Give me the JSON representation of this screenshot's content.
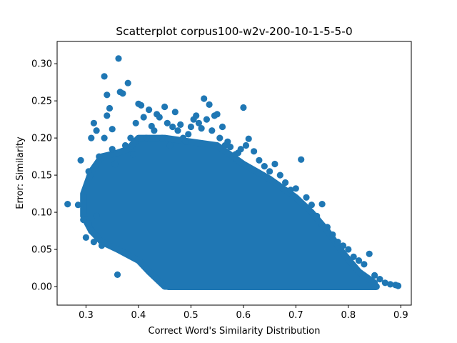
{
  "chart_data": {
    "type": "scatter",
    "title": "Scatterplot corpus100-w2v-200-10-1-5-5-0",
    "xlabel": "Correct Word's Similarity Distribution",
    "ylabel": "Error: Similarity",
    "xlim": [
      0.245,
      0.92
    ],
    "ylim": [
      -0.025,
      0.33
    ],
    "xticks": [
      0.3,
      0.4,
      0.5,
      0.6,
      0.7,
      0.8,
      0.9
    ],
    "xtick_labels": [
      "0.3",
      "0.4",
      "0.5",
      "0.6",
      "0.7",
      "0.8",
      "0.9"
    ],
    "yticks": [
      0.0,
      0.05,
      0.1,
      0.15,
      0.2,
      0.25,
      0.3
    ],
    "ytick_labels": [
      "0.00",
      "0.05",
      "0.10",
      "0.15",
      "0.20",
      "0.25",
      "0.30"
    ],
    "grid": false,
    "legend": "none",
    "marker_color": "#1f77b4",
    "series": [
      {
        "x": [
          0.265,
          0.285,
          0.29,
          0.295,
          0.3,
          0.3,
          0.305,
          0.305,
          0.31,
          0.31,
          0.315,
          0.315,
          0.32,
          0.32,
          0.325,
          0.33,
          0.335,
          0.335,
          0.34,
          0.34,
          0.345,
          0.35,
          0.35,
          0.355,
          0.36,
          0.362,
          0.365,
          0.37,
          0.375,
          0.38,
          0.385,
          0.39,
          0.395,
          0.4,
          0.405,
          0.41,
          0.415,
          0.42,
          0.425,
          0.43,
          0.435,
          0.44,
          0.445,
          0.45,
          0.455,
          0.46,
          0.465,
          0.47,
          0.475,
          0.48,
          0.485,
          0.49,
          0.495,
          0.5,
          0.505,
          0.51,
          0.515,
          0.52,
          0.525,
          0.53,
          0.535,
          0.54,
          0.545,
          0.55,
          0.555,
          0.56,
          0.565,
          0.57,
          0.575,
          0.58,
          0.585,
          0.59,
          0.595,
          0.6,
          0.605,
          0.61,
          0.62,
          0.63,
          0.64,
          0.65,
          0.66,
          0.67,
          0.68,
          0.69,
          0.7,
          0.71,
          0.72,
          0.73,
          0.74,
          0.75,
          0.76,
          0.77,
          0.78,
          0.79,
          0.8,
          0.81,
          0.82,
          0.83,
          0.84,
          0.85,
          0.86,
          0.87,
          0.88,
          0.89,
          0.895
        ],
        "y": [
          0.111,
          0.11,
          0.17,
          0.09,
          0.128,
          0.066,
          0.155,
          0.085,
          0.2,
          0.075,
          0.22,
          0.06,
          0.21,
          0.095,
          0.175,
          0.055,
          0.283,
          0.2,
          0.258,
          0.23,
          0.24,
          0.212,
          0.185,
          0.165,
          0.016,
          0.307,
          0.262,
          0.26,
          0.19,
          0.274,
          0.2,
          0.178,
          0.22,
          0.246,
          0.244,
          0.228,
          0.2,
          0.238,
          0.216,
          0.21,
          0.232,
          0.228,
          0.2,
          0.242,
          0.22,
          0.19,
          0.215,
          0.235,
          0.21,
          0.218,
          0.2,
          0.195,
          0.205,
          0.215,
          0.225,
          0.23,
          0.22,
          0.213,
          0.253,
          0.225,
          0.245,
          0.21,
          0.23,
          0.232,
          0.2,
          0.215,
          0.19,
          0.195,
          0.188,
          0.175,
          0.178,
          0.18,
          0.185,
          0.241,
          0.19,
          0.199,
          0.182,
          0.17,
          0.162,
          0.155,
          0.165,
          0.15,
          0.14,
          0.13,
          0.132,
          0.171,
          0.12,
          0.11,
          0.095,
          0.111,
          0.08,
          0.07,
          0.06,
          0.055,
          0.05,
          0.04,
          0.035,
          0.03,
          0.044,
          0.015,
          0.01,
          0.005,
          0.003,
          0.002,
          0.001
        ]
      }
    ],
    "density_note": ""
  }
}
